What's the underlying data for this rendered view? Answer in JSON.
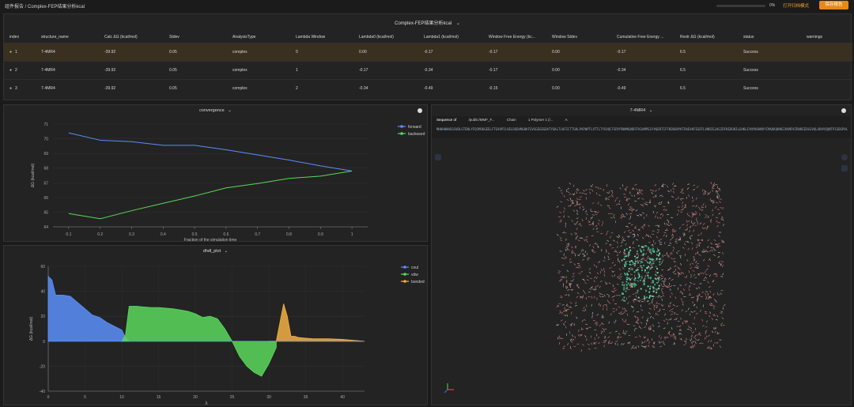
{
  "header": {
    "breadcrumb": "组件报告 / Complex-FEP结果分析kcal",
    "progress_pct": "0%",
    "progress_value": 0,
    "open_label": "打开归档模式",
    "save_label": "保存报告"
  },
  "table": {
    "title": "Complex-FEP结果分析kcal",
    "columns": [
      "index",
      "structure_name",
      "Calc ΔG (kcal/mol)",
      "Stdev",
      "AnalysisType",
      "Lambda Window",
      "Lambda0 (kcal/mol)",
      "Lambda1 (kcal/mol)",
      "Window Free Energy (kc...",
      "Window Stdev",
      "Cumulative Free Energy ...",
      "Restr ΔG (kcal/mol)",
      "status",
      "warnings"
    ],
    "rows": [
      [
        "1",
        "7-4MR4",
        "-39.92",
        "0.05",
        "complex",
        "0",
        "0.00",
        "-0.17",
        "-0.17",
        "0.00",
        "-0.17",
        "6.5",
        "Success",
        ""
      ],
      [
        "2",
        "7-4MR4",
        "-39.92",
        "0.05",
        "complex",
        "1",
        "-0.17",
        "-0.34",
        "-0.17",
        "0.00",
        "-0.34",
        "6.5",
        "Success",
        ""
      ],
      [
        "3",
        "7-4MR4",
        "-39.92",
        "0.05",
        "complex",
        "2",
        "-0.34",
        "-0.49",
        "-0.15",
        "0.00",
        "-0.49",
        "6.5",
        "Success",
        ""
      ]
    ]
  },
  "convergence": {
    "title": "convergence",
    "chart_data": {
      "type": "line",
      "xlabel": "Fraction of the simulation time",
      "ylabel": "ΔG (kcal/mol)",
      "x": [
        0.1,
        0.2,
        0.3,
        0.4,
        0.5,
        0.6,
        0.7,
        0.8,
        0.9,
        1
      ],
      "xticks": [
        "0.1",
        "0.2",
        "0.3",
        "0.4",
        "0.5",
        "0.6",
        "0.7",
        "0.8",
        "0.9",
        "1"
      ],
      "yticks": [
        "64",
        "65",
        "66",
        "67",
        "68",
        "69",
        "70",
        "71"
      ],
      "ylim": [
        64,
        71
      ],
      "series": [
        {
          "name": "forward",
          "color": "#5b8ff9",
          "values": [
            70.4,
            69.9,
            69.8,
            69.55,
            69.55,
            69.25,
            68.9,
            68.55,
            68.15,
            67.8
          ]
        },
        {
          "name": "backward",
          "color": "#5ad85a",
          "values": [
            64.9,
            64.55,
            65.1,
            65.6,
            66.1,
            66.65,
            66.95,
            67.3,
            67.45,
            67.8
          ]
        }
      ],
      "legend": "top-right"
    }
  },
  "dhdl": {
    "title": "dhdl_plot",
    "chart_data": {
      "type": "area",
      "xlabel": "λ",
      "ylabel": "ΔG (kcal/mol)",
      "xlim": [
        0,
        43
      ],
      "ylim": [
        -40,
        60
      ],
      "xticks": [
        "0",
        "5",
        "10",
        "15",
        "20",
        "25",
        "30",
        "35",
        "40"
      ],
      "yticks": [
        "-40",
        "-20",
        "0",
        "20",
        "40",
        "60"
      ],
      "legend": "top-right",
      "series": [
        {
          "name": "coul",
          "color": "#5b8ff9",
          "x": [
            0,
            0.5,
            1,
            2,
            3,
            4,
            5,
            6,
            7,
            8,
            9,
            10,
            10.5,
            11
          ],
          "values": [
            52,
            49,
            37,
            37,
            36,
            31,
            26,
            21,
            19,
            15,
            12,
            9,
            3,
            0
          ]
        },
        {
          "name": "vdw",
          "color": "#5ad85a",
          "x": [
            10,
            10.5,
            11,
            12,
            13,
            14,
            15,
            16,
            17,
            18,
            19,
            20,
            21,
            22,
            23,
            24,
            25,
            26,
            27,
            28,
            29,
            30,
            31
          ],
          "values": [
            0,
            5,
            28,
            28,
            27.5,
            27,
            27,
            26.5,
            26,
            25,
            24,
            22,
            19,
            20,
            18,
            10,
            0,
            -12,
            -20,
            -25,
            -28,
            -18,
            -5
          ]
        },
        {
          "name": "bonded",
          "color": "#f2b043",
          "x": [
            30,
            31,
            32,
            32.5,
            33,
            33.5,
            34,
            35,
            36,
            38,
            40,
            42,
            43
          ],
          "values": [
            0,
            0,
            30,
            20,
            4,
            4,
            3,
            2.5,
            2,
            2,
            1.5,
            0.5,
            0
          ]
        }
      ]
    }
  },
  "viewer": {
    "title": "7-4MR4",
    "seq_label": "Sequence of",
    "seq_file": "/public/MMF_F...",
    "chain_label": "Chain",
    "chain_value": "1 Polymer 1 (/...",
    "chain_id": "A",
    "sequence": "MHHHHHHSSGVDLGTENLYFQSMSKGEELFTGVVPILVELDGDVNGHKFSVSGEGEGDATYGKLTLKFICTTGKLPVPWPTLVTTLTYGVQCFSRYPDHMKQHDFFKSAMPEGYVQERTIFFKDDGNYKTRAEVKFEGDTLVNRIELKGIDFKEDGNILGHKLEYNYNSHNVYIMADKQKNGIKVNFKIRHNIEDGSVQLADHYQQNTPIGDGPVLLPDNHYLSTQSALSKDPNEKRDHMVLLEFVTAAGITLGMDELYK"
  }
}
